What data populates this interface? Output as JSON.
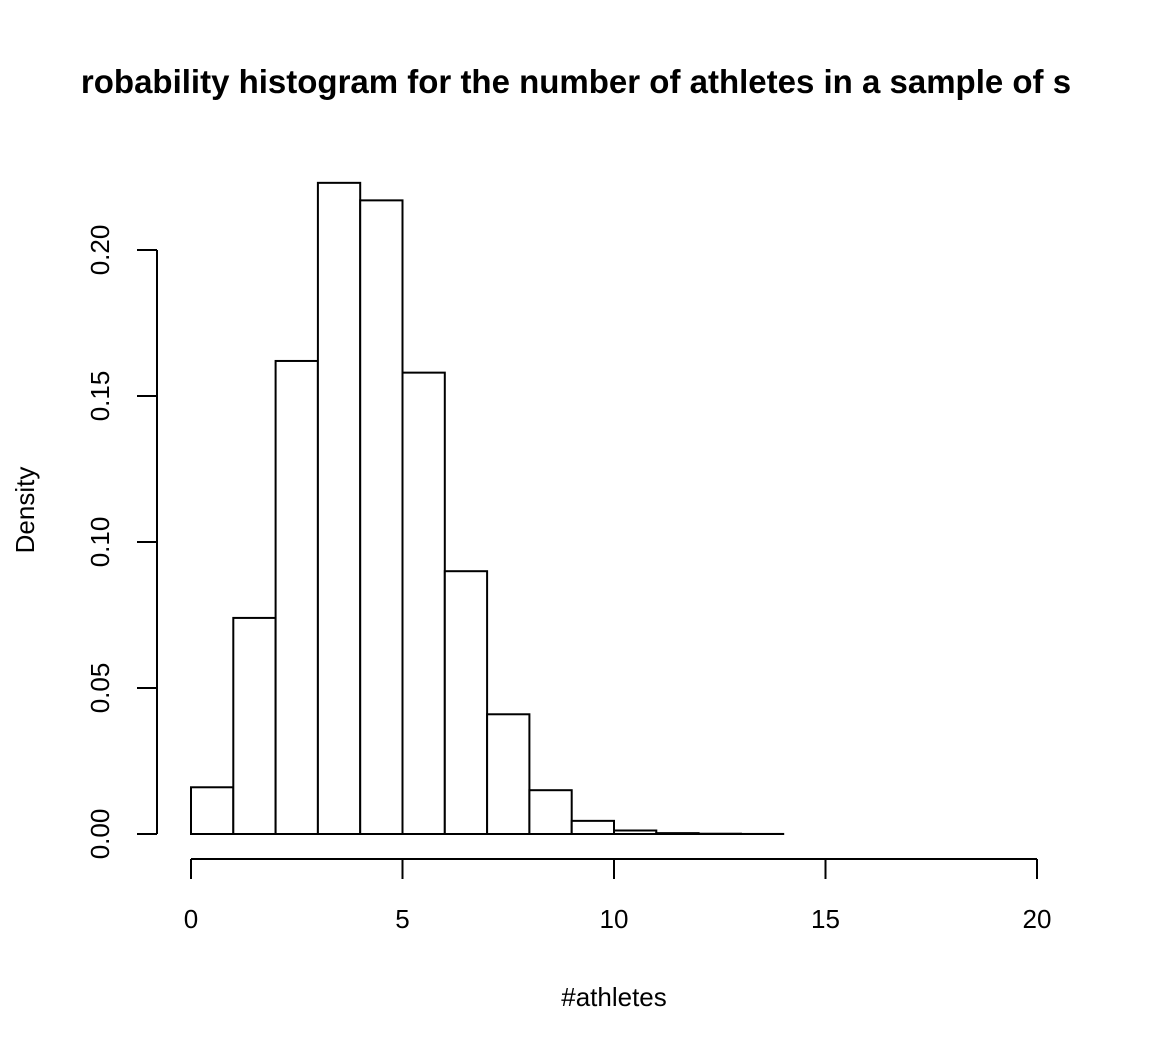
{
  "chart_data": {
    "type": "bar",
    "title": "robability histogram for the number of athletes in a sample of s",
    "xlabel": "#athletes",
    "ylabel": "Density",
    "xlim": [
      0,
      20
    ],
    "ylim": [
      0,
      0.22
    ],
    "x_ticks": [
      "0",
      "5",
      "10",
      "15",
      "20"
    ],
    "y_ticks": [
      "0.00",
      "0.05",
      "0.10",
      "0.15",
      "0.20"
    ],
    "bin_edges": [
      0,
      1,
      2,
      3,
      4,
      5,
      6,
      7,
      8,
      9,
      10,
      11,
      12,
      13,
      14
    ],
    "values": [
      0.016,
      0.074,
      0.162,
      0.223,
      0.217,
      0.158,
      0.09,
      0.041,
      0.015,
      0.0045,
      0.0012,
      0.0003,
      0.0001,
      2e-05
    ],
    "grid": false,
    "legend": "none",
    "colors": {
      "bar_fill": "#ffffff",
      "bar_stroke": "#000000",
      "axis": "#000000"
    }
  }
}
